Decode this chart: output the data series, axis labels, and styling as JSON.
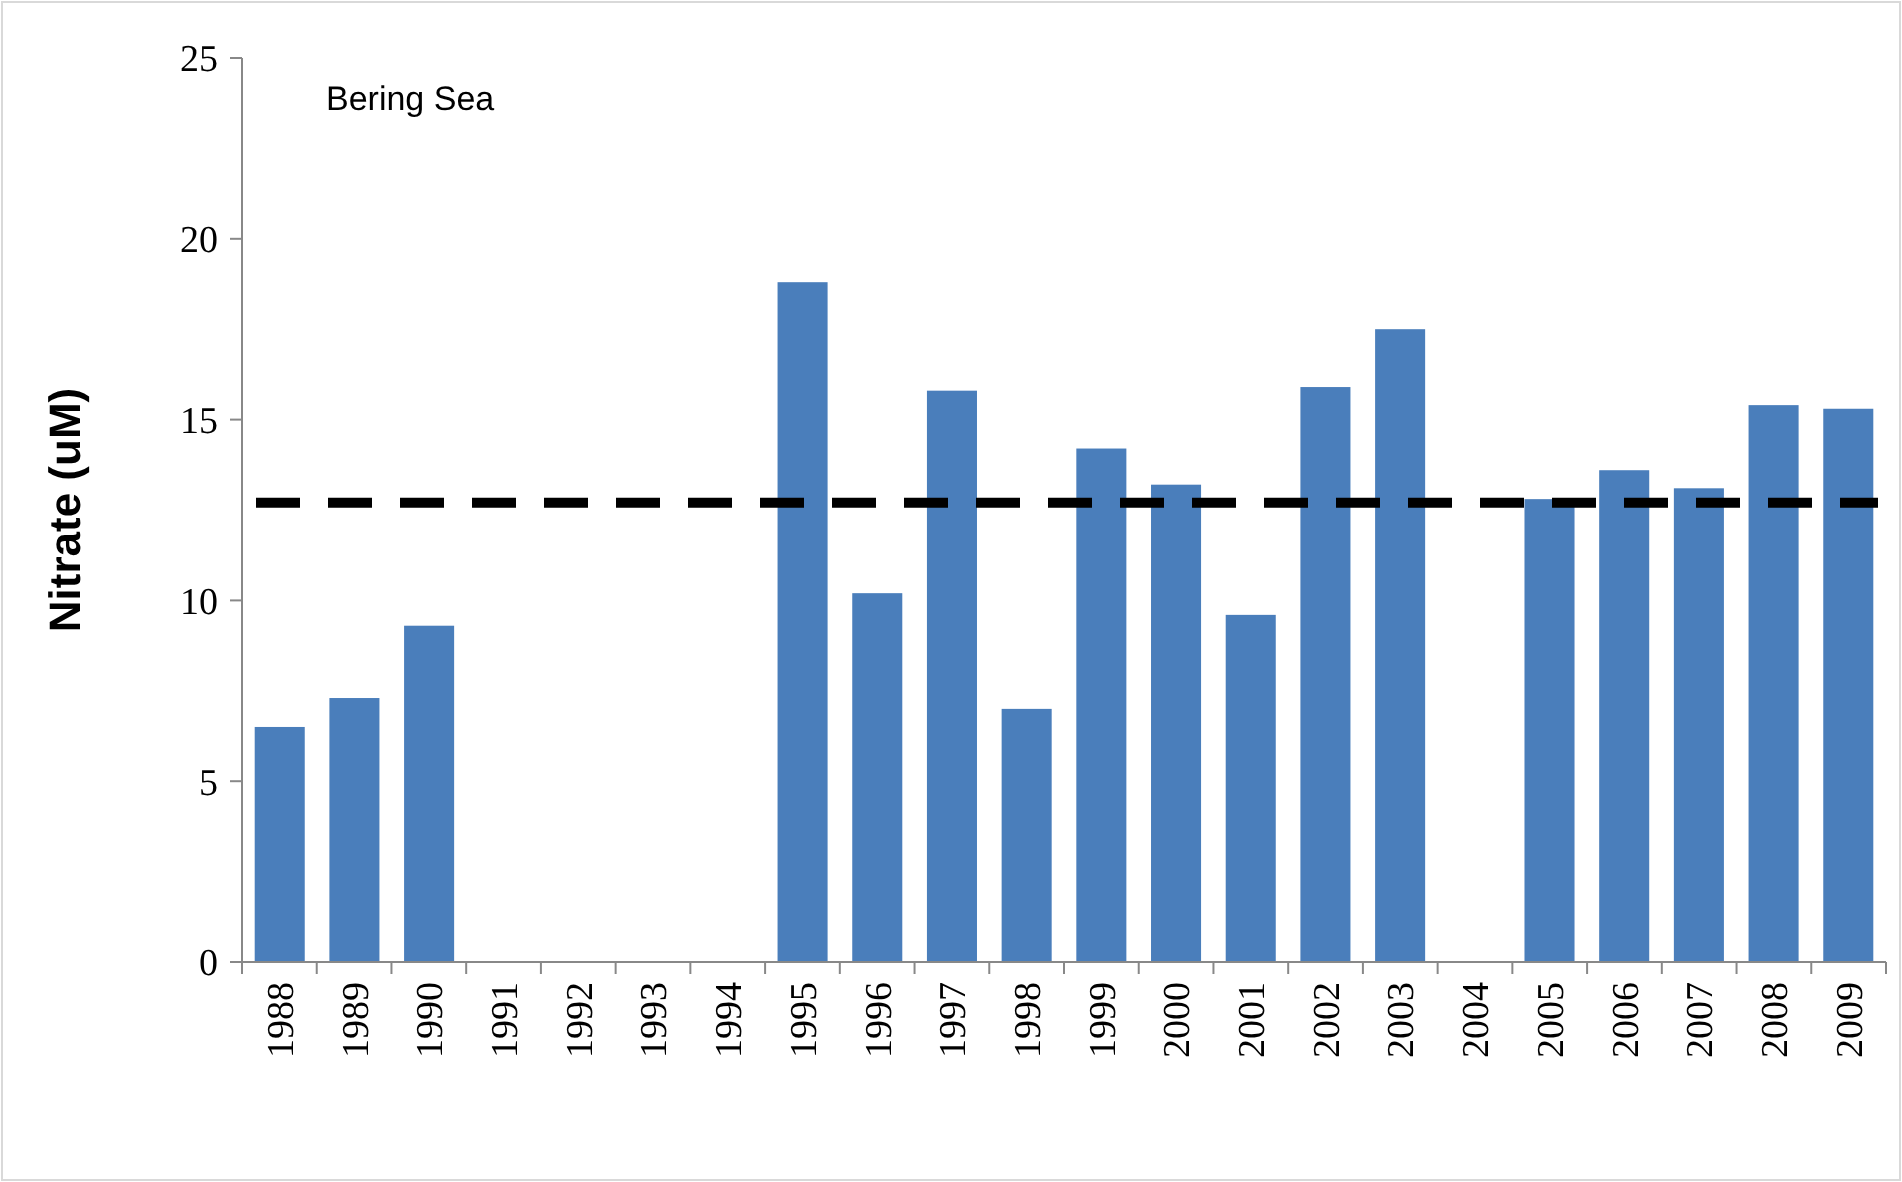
{
  "chart_data": {
    "type": "bar",
    "ylabel": "Nitrate (uM)",
    "annotations": [
      "Bering Sea"
    ],
    "categories": [
      "1988",
      "1989",
      "1990",
      "1991",
      "1992",
      "1993",
      "1994",
      "1995",
      "1996",
      "1997",
      "1998",
      "1999",
      "2000",
      "2001",
      "2002",
      "2003",
      "2004",
      "2005",
      "2006",
      "2007",
      "2008",
      "2009"
    ],
    "series": [
      {
        "color": "#4a7ebb",
        "values": [
          6.5,
          7.3,
          9.3,
          null,
          null,
          null,
          null,
          18.8,
          10.2,
          15.8,
          7.0,
          14.2,
          13.2,
          9.6,
          15.9,
          17.5,
          null,
          12.8,
          13.6,
          13.1,
          15.4,
          15.3
        ]
      }
    ],
    "ref_lines": [
      {
        "axis": "y",
        "value": 12.7,
        "color": "#000000",
        "line_style": "dashed"
      }
    ],
    "ylim": [
      0,
      25
    ],
    "yticks": [
      0,
      5,
      10,
      15,
      20,
      25
    ]
  }
}
